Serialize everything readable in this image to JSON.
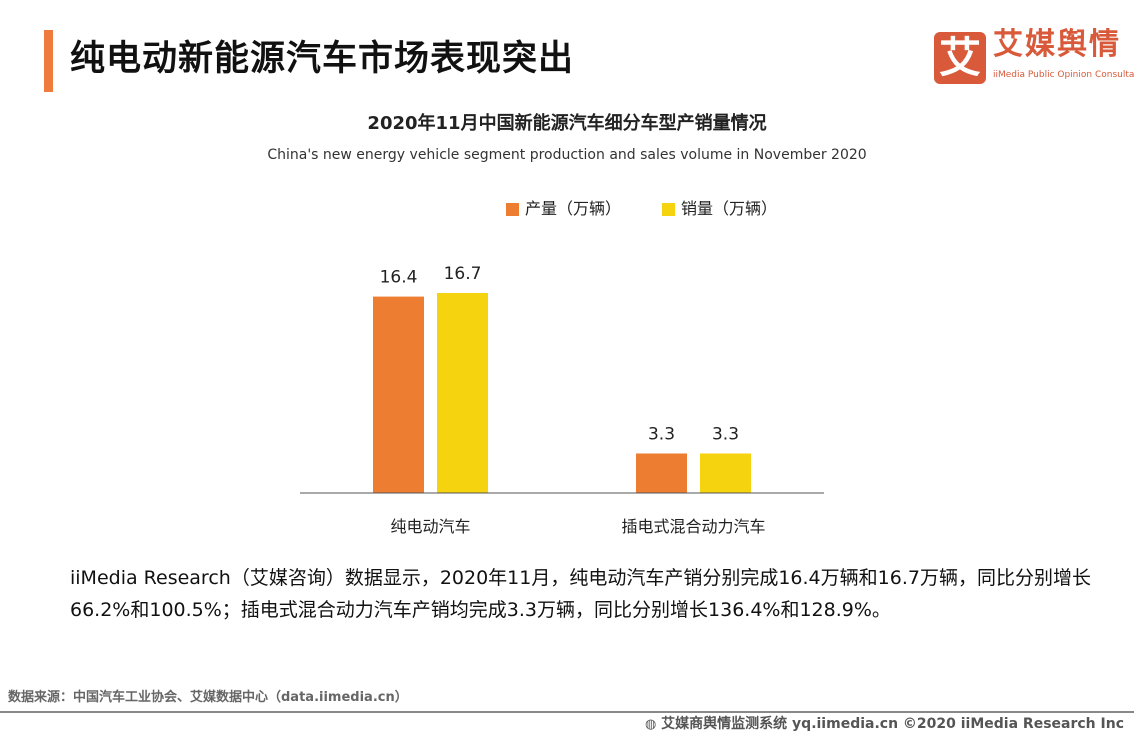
{
  "header": {
    "title": "纯电动新能源汽车市场表现突出",
    "accent_color": "#f07b3f"
  },
  "logo": {
    "mark": "艾",
    "name": "艾媒舆情",
    "tagline": "iiMedia Public Opinion Consultation",
    "color": "#d85a3a"
  },
  "chart_data": {
    "type": "bar",
    "title": "2020年11月中国新能源汽车细分车型产销量情况",
    "subtitle": "China's new energy vehicle segment production and sales volume in November 2020",
    "categories": [
      "纯电动汽车",
      "插电式混合动力汽车"
    ],
    "series": [
      {
        "name": "产量（万辆）",
        "values": [
          16.4,
          3.3
        ],
        "color": "#ed7d31"
      },
      {
        "name": "销量（万辆）",
        "values": [
          16.7,
          3.3
        ],
        "color": "#f5d40f"
      }
    ],
    "labels": [
      [
        "16.4",
        "3.3"
      ],
      [
        "16.7",
        "3.3"
      ]
    ],
    "legend": "top",
    "grid": false,
    "ylim": [
      0,
      16.7
    ]
  },
  "description": "iiMedia Research（艾媒咨询）数据显示，2020年11月，纯电动汽车产销分别完成16.4万辆和16.7万辆，同比分别增长66.2%和100.5%；插电式混合动力汽车产销均完成3.3万辆，同比分别增长136.4%和128.9%。",
  "source": "数据来源：中国汽车工业协会、艾媒数据中心（data.iimedia.cn）",
  "footer": {
    "icon": "globe-icon",
    "text": "艾媒商舆情监测系统 yq.iimedia.cn  ©2020  iiMedia Research  Inc"
  }
}
